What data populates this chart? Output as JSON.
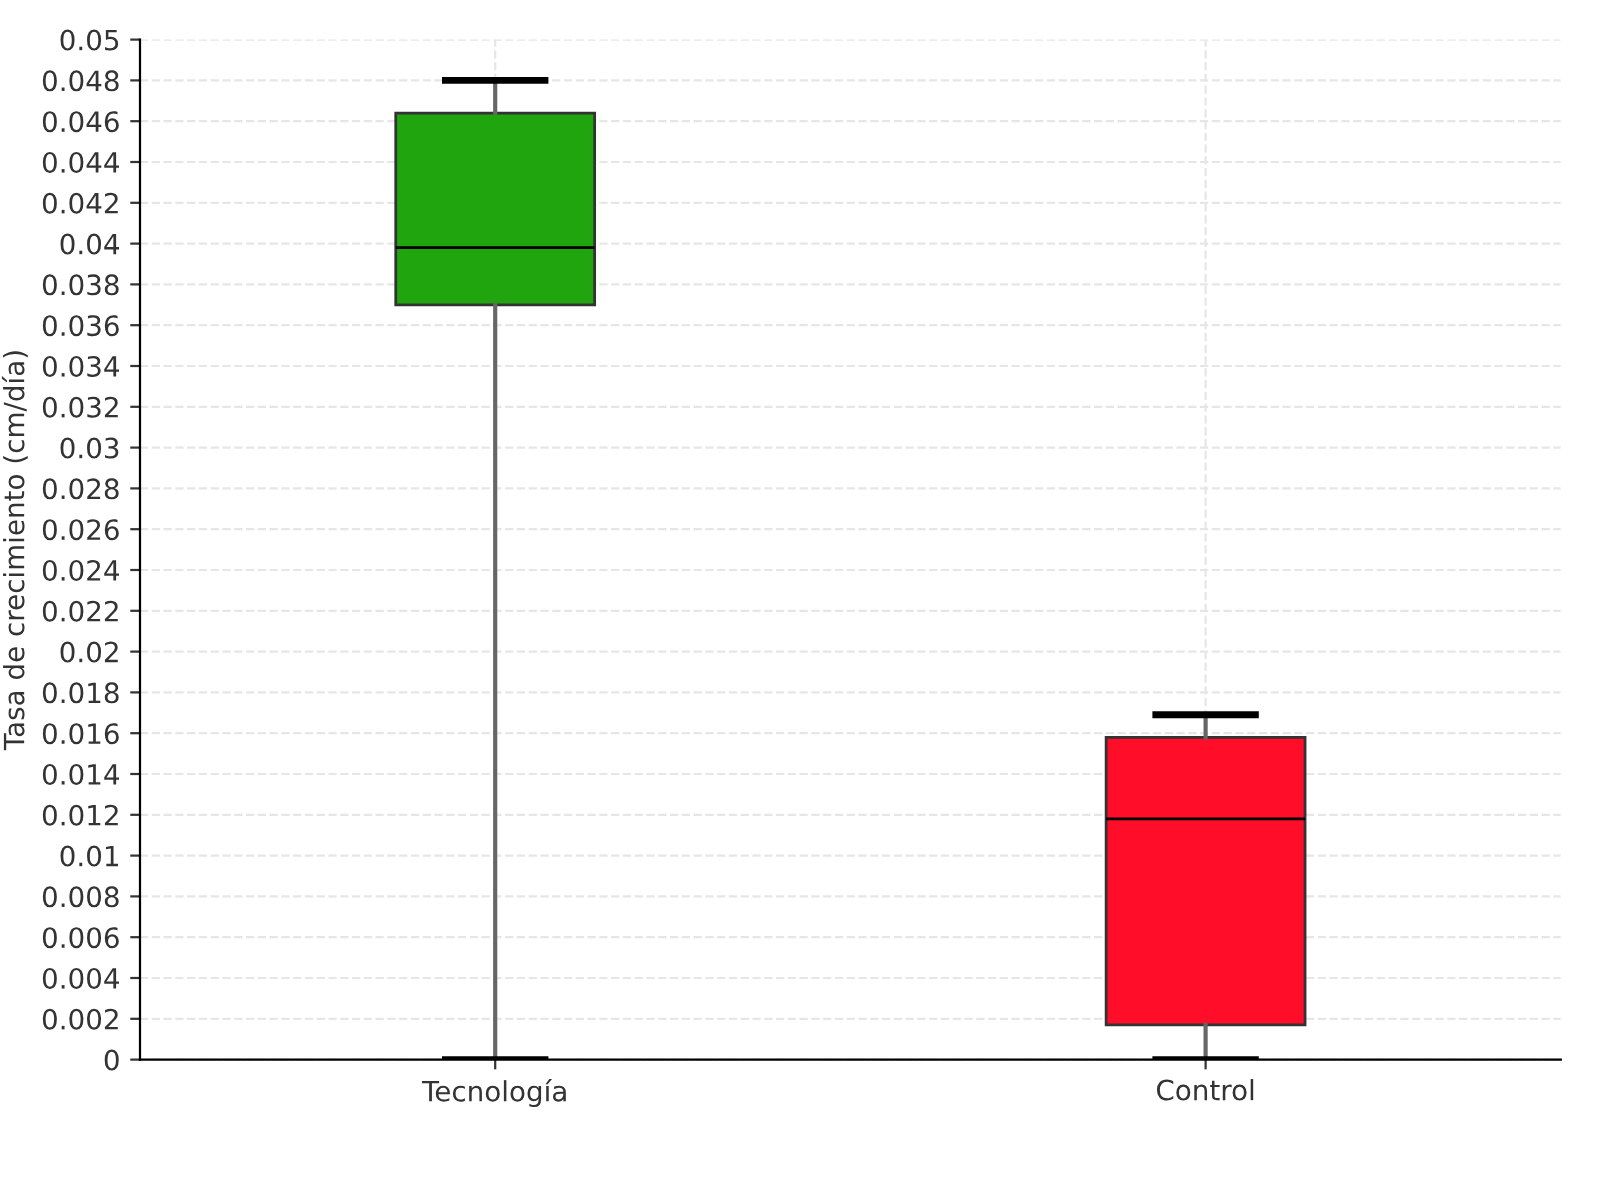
{
  "chart_data": {
    "type": "box",
    "ylabel": "Tasa de crecimiento (cm/día)",
    "categories": [
      "Tecnología",
      "Control"
    ],
    "colors": [
      "#21a50f",
      "#ff0d29"
    ],
    "boxes": [
      {
        "low": 0,
        "q1": 0.037,
        "median": 0.0398,
        "q3": 0.0464,
        "high": 0.048
      },
      {
        "low": 0,
        "q1": 0.0017,
        "median": 0.0118,
        "q3": 0.0158,
        "high": 0.0169
      }
    ],
    "ylim": [
      0,
      0.05
    ],
    "yticks": [
      0,
      0.002,
      0.004,
      0.006,
      0.008,
      0.01,
      0.012,
      0.014,
      0.016,
      0.018,
      0.02,
      0.022,
      0.024,
      0.026,
      0.028,
      0.03,
      0.032,
      0.034,
      0.036,
      0.038,
      0.04,
      0.042,
      0.044,
      0.046,
      0.048,
      0.05
    ],
    "grid": true
  }
}
